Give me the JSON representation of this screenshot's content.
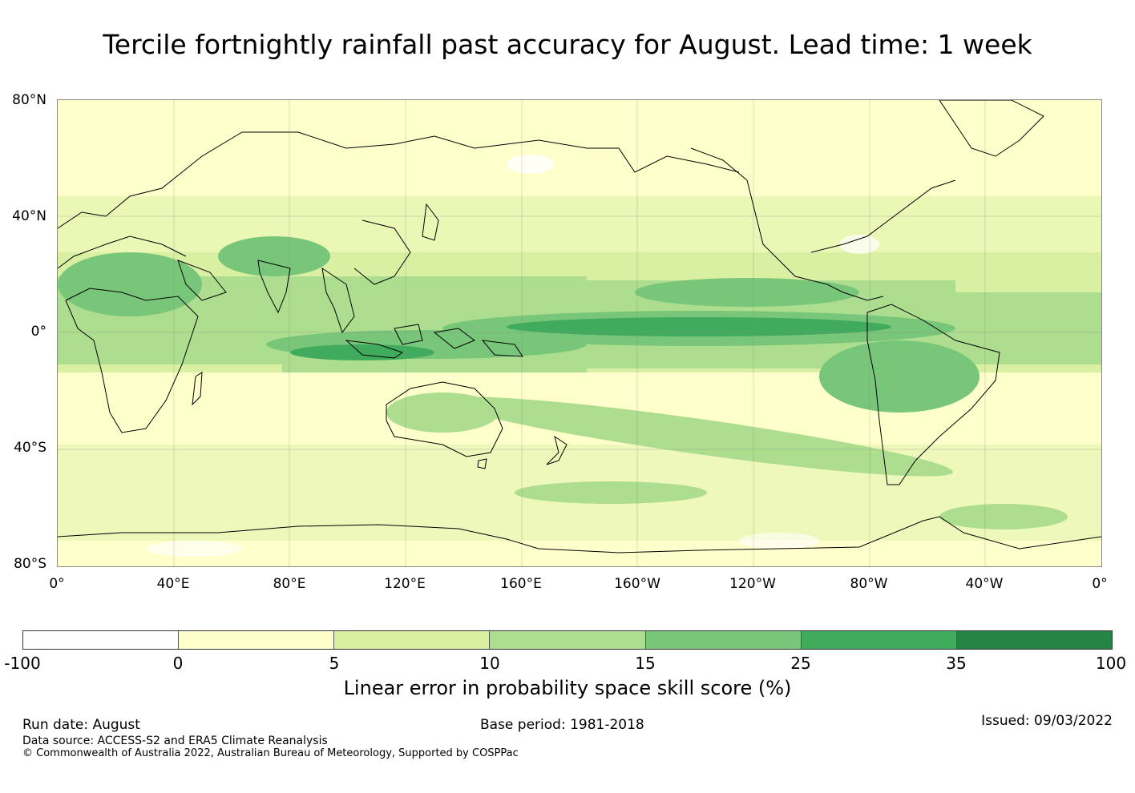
{
  "title": "Tercile fortnightly rainfall past accuracy for August. Lead time: 1 week",
  "map": {
    "lat_labels": [
      "80°N",
      "40°N",
      "0°",
      "40°S",
      "80°S"
    ],
    "lon_labels": [
      "0°",
      "40°E",
      "80°E",
      "120°E",
      "160°E",
      "160°W",
      "120°W",
      "80°W",
      "40°W",
      "0°"
    ],
    "background_color": "#ffffc8",
    "coastline_color": "#000000"
  },
  "colorbar": {
    "ticks": [
      "-100",
      "0",
      "5",
      "10",
      "15",
      "25",
      "35",
      "100"
    ],
    "bins": [
      {
        "range": "-100 to 0",
        "color": "#ffffff"
      },
      {
        "range": "0 to 5",
        "color": "#ffffcc"
      },
      {
        "range": "5 to 10",
        "color": "#d9f0a3"
      },
      {
        "range": "10 to 15",
        "color": "#addd8e"
      },
      {
        "range": "15 to 25",
        "color": "#78c679"
      },
      {
        "range": "25 to 35",
        "color": "#41ab5d"
      },
      {
        "range": "35 to 100",
        "color": "#238443"
      }
    ],
    "label": "Linear error in probability space skill score (%)"
  },
  "footer": {
    "run_date": "Run date: August",
    "base_period": "Base period: 1981-2018",
    "issued": "Issued: 09/03/2022",
    "data_source": "Data source: ACCESS-S2 and ERA5 Climate Reanalysis",
    "copyright": "© Commonwealth of Australia 2022, Australian Bureau of Meteorology, Supported by COSPPac"
  }
}
